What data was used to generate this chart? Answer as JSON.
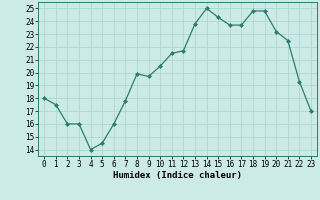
{
  "x": [
    0,
    1,
    2,
    3,
    4,
    5,
    6,
    7,
    8,
    9,
    10,
    11,
    12,
    13,
    14,
    15,
    16,
    17,
    18,
    19,
    20,
    21,
    22,
    23
  ],
  "y": [
    18,
    17.5,
    16,
    16,
    14,
    14.5,
    16,
    17.8,
    19.9,
    19.7,
    20.5,
    21.5,
    21.7,
    23.8,
    25,
    24.3,
    23.7,
    23.7,
    24.8,
    24.8,
    23.2,
    22.5,
    19.3,
    17
  ],
  "line_color": "#2e7d6e",
  "marker": "D",
  "marker_size": 2.0,
  "bg_color": "#cceae7",
  "grid_color": "#aad4d0",
  "xlabel": "Humidex (Indice chaleur)",
  "ylim": [
    13.5,
    25.5
  ],
  "xlim": [
    -0.5,
    23.5
  ],
  "yticks": [
    14,
    15,
    16,
    17,
    18,
    19,
    20,
    21,
    22,
    23,
    24,
    25
  ],
  "xticks": [
    0,
    1,
    2,
    3,
    4,
    5,
    6,
    7,
    8,
    9,
    10,
    11,
    12,
    13,
    14,
    15,
    16,
    17,
    18,
    19,
    20,
    21,
    22,
    23
  ]
}
